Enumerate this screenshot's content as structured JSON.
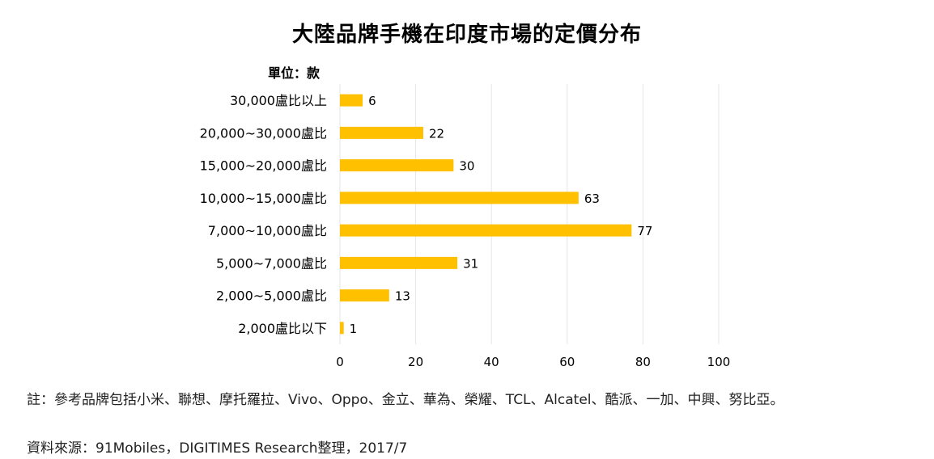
{
  "chart_data": {
    "type": "bar",
    "orientation": "horizontal",
    "title": "大陸品牌手機在印度市場的定價分布",
    "unit_label": "單位：款",
    "categories": [
      "30,000盧比以上",
      "20,000~30,000盧比",
      "15,000~20,000盧比",
      "10,000~15,000盧比",
      "7,000~10,000盧比",
      "5,000~7,000盧比",
      "2,000~5,000盧比",
      "2,000盧比以下"
    ],
    "values": [
      6,
      22,
      30,
      63,
      77,
      31,
      13,
      1
    ],
    "xlim": [
      0,
      100
    ],
    "xticks": [
      0,
      20,
      40,
      60,
      80,
      100
    ],
    "bar_color": "#FFC000",
    "grid": true
  },
  "notes": {
    "note": "註：參考品牌包括小米、聯想、摩托羅拉、Vivo、Oppo、金立、華為、榮耀、TCL、Alcatel、酷派、一加、中興、努比亞。",
    "source": "資料來源：91Mobiles，DIGITIMES Research整理，2017/7"
  }
}
